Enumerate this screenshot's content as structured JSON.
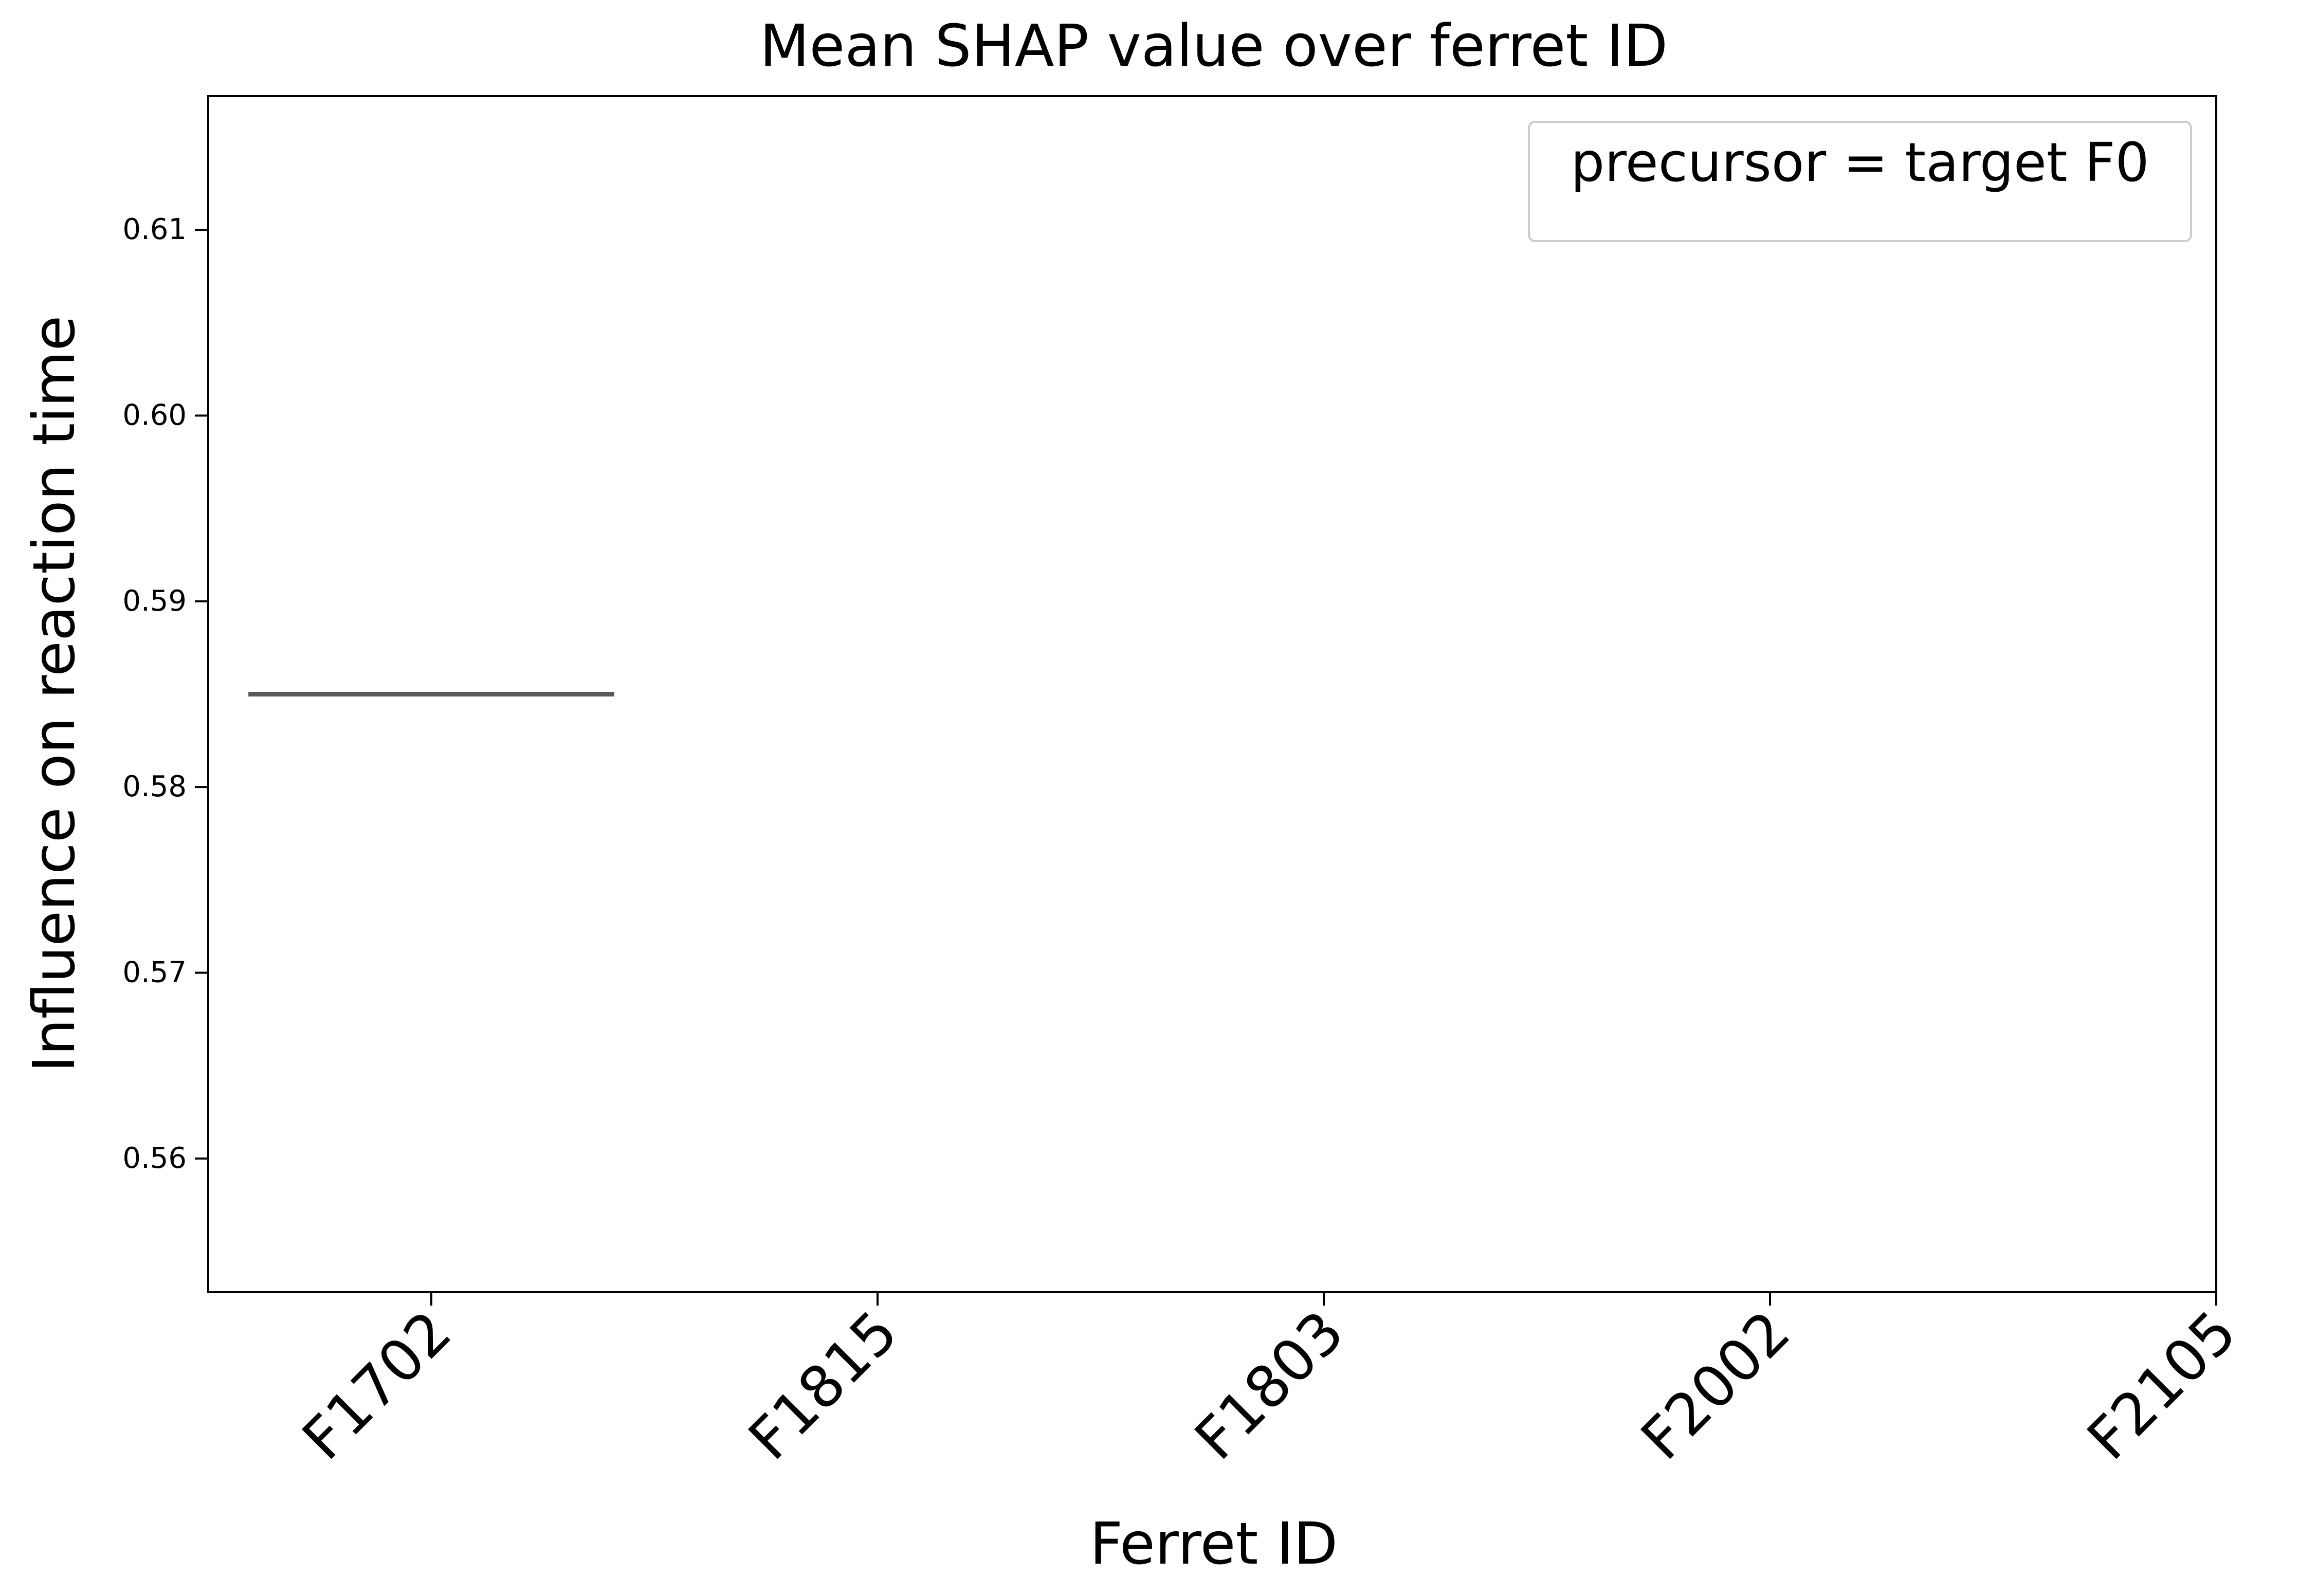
{
  "chart_data": {
    "type": "box",
    "title": "Mean SHAP value over ferret ID",
    "xlabel": "Ferret ID",
    "ylabel": "Influence on reaction time",
    "categories": [
      "F1702",
      "F1815",
      "F1803",
      "F2002",
      "F2105"
    ],
    "ylim": [
      0.5528,
      0.6172
    ],
    "yticks": [
      0.56,
      0.57,
      0.58,
      0.59,
      0.6,
      0.61
    ],
    "ytick_labels": [
      "0.56",
      "0.57",
      "0.58",
      "0.59",
      "0.60",
      "0.61"
    ],
    "legend": {
      "label": "precursor = target F0",
      "position": "top-right"
    },
    "series": [
      {
        "category": "F1702",
        "values": [
          0.585
        ],
        "median": 0.585,
        "xspan": [
          -0.41,
          0.41
        ]
      }
    ],
    "grid": false,
    "colors": {
      "median_line": "#595959",
      "axes": "#000000",
      "legend_border": "#cccccc"
    }
  }
}
